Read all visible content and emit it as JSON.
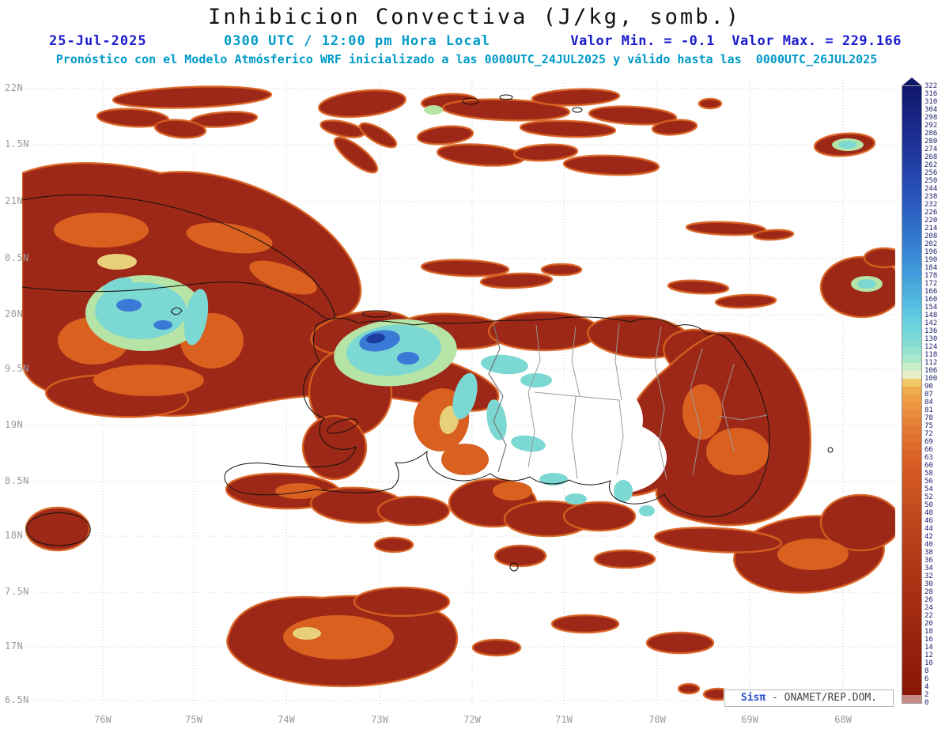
{
  "header": {
    "title": "Inhibicion Convectiva (J/kg, somb.)",
    "date": "25-Jul-2025",
    "local_time": "0300 UTC / 12:00 pm Hora Local",
    "min_label": "Valor Min. = -0.1",
    "max_label": "Valor Max. = 229.166",
    "valor_line": "Valor Min. = -0.1  Valor Max. = 229.166",
    "forecast": "Pronóstico con el Modelo Atmósferico WRF inicializado a las 0000UTC_24JUL2025 y válido hasta las  0000UTC_26JUL2025"
  },
  "axes": {
    "lat_labels": [
      "22N",
      "1.5N",
      "21N",
      "0.5N",
      "20N",
      "9.5N",
      "19N",
      "8.5N",
      "18N",
      "7.5N",
      "17N",
      "6.5N"
    ],
    "lon_labels": [
      "76W",
      "75W",
      "74W",
      "73W",
      "72W",
      "71W",
      "70W",
      "69W",
      "68W"
    ]
  },
  "colorbar": {
    "unit": "J/kg",
    "values": [
      322,
      316,
      310,
      304,
      298,
      292,
      286,
      280,
      274,
      268,
      262,
      256,
      250,
      244,
      238,
      232,
      226,
      220,
      214,
      208,
      202,
      196,
      190,
      184,
      178,
      172,
      166,
      160,
      154,
      148,
      142,
      136,
      130,
      124,
      118,
      112,
      106,
      100,
      90,
      87,
      84,
      81,
      78,
      75,
      72,
      69,
      66,
      63,
      60,
      58,
      56,
      54,
      52,
      50,
      48,
      46,
      44,
      42,
      40,
      38,
      36,
      34,
      32,
      30,
      28,
      26,
      24,
      22,
      20,
      18,
      16,
      14,
      12,
      10,
      8,
      6,
      4,
      2,
      0
    ],
    "stops": [
      [
        0,
        "#ffffff"
      ],
      [
        2,
        "#8a1608"
      ],
      [
        14,
        "#97200d"
      ],
      [
        26,
        "#a52e13"
      ],
      [
        38,
        "#b43c18"
      ],
      [
        50,
        "#c54c1e"
      ],
      [
        60,
        "#d55c24"
      ],
      [
        69,
        "#df6e2c"
      ],
      [
        78,
        "#e68438"
      ],
      [
        87,
        "#efa449"
      ],
      [
        95,
        "#f2c866"
      ],
      [
        100,
        "#f4ecc8"
      ],
      [
        106,
        "#dcf2c4"
      ],
      [
        112,
        "#b4ecca"
      ],
      [
        124,
        "#8ae0d2"
      ],
      [
        142,
        "#68d2de"
      ],
      [
        160,
        "#50b8e0"
      ],
      [
        184,
        "#3f96da"
      ],
      [
        208,
        "#3276cc"
      ],
      [
        232,
        "#2a5bbd"
      ],
      [
        256,
        "#2444ac"
      ],
      [
        280,
        "#1d3194"
      ],
      [
        304,
        "#16227d"
      ],
      [
        322,
        "#10176b"
      ]
    ]
  },
  "colors": {
    "title_text": "#111111",
    "date_blue": "#1a1acc",
    "cyan_text": "#009ac8",
    "axis_gray": "#9a9a9a",
    "shade_deep_red": "#9e2817",
    "shade_orange": "#d9601f",
    "shade_yellow": "#e8cf7a",
    "shade_green": "#b5e4a6",
    "shade_cyan": "#7cd8d2",
    "shade_blue": "#3b79d6",
    "shade_navy": "#1c3c9e"
  },
  "credit": {
    "brand": "Sisπ ",
    "text": "- ONAMET/REP.DOM."
  }
}
